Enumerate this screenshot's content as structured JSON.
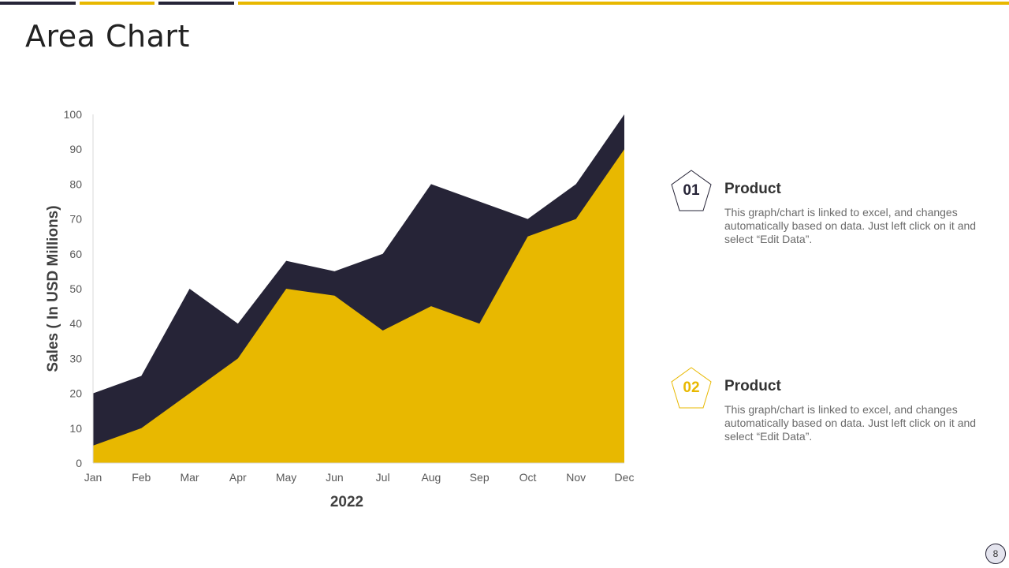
{
  "slide": {
    "title": "Area Chart",
    "page_number": "8"
  },
  "colors": {
    "dark": "#262437",
    "gold": "#e8b800",
    "axis": "#d9d9d9",
    "text": "#595959"
  },
  "legend": [
    {
      "number": "01",
      "title": "Product",
      "description": "This graph/chart is linked to excel, and changes automatically based on data. Just left click on it and select “Edit Data”.",
      "color": "#262437",
      "icon": "pentagon-icon"
    },
    {
      "number": "02",
      "title": "Product",
      "description": "This graph/chart is linked to excel, and changes automatically based on data. Just left click on it and select “Edit Data”.",
      "color": "#e8b800",
      "icon": "pentagon-icon"
    }
  ],
  "chart_data": {
    "type": "area",
    "title": "",
    "xlabel": "2022",
    "ylabel": "Sales ( In USD Millions)",
    "categories": [
      "Jan",
      "Feb",
      "Mar",
      "Apr",
      "May",
      "Jun",
      "Jul",
      "Aug",
      "Sep",
      "Oct",
      "Nov",
      "Dec"
    ],
    "ylim": [
      0,
      100
    ],
    "yticks": [
      0,
      10,
      20,
      30,
      40,
      50,
      60,
      70,
      80,
      90,
      100
    ],
    "grid": false,
    "legend": "right",
    "series": [
      {
        "name": "Product 01",
        "color": "#262437",
        "values": [
          20,
          25,
          50,
          40,
          58,
          55,
          60,
          80,
          75,
          70,
          80,
          100
        ]
      },
      {
        "name": "Product 02",
        "color": "#e8b800",
        "values": [
          5,
          10,
          20,
          30,
          50,
          48,
          38,
          45,
          40,
          65,
          70,
          90
        ]
      }
    ]
  }
}
